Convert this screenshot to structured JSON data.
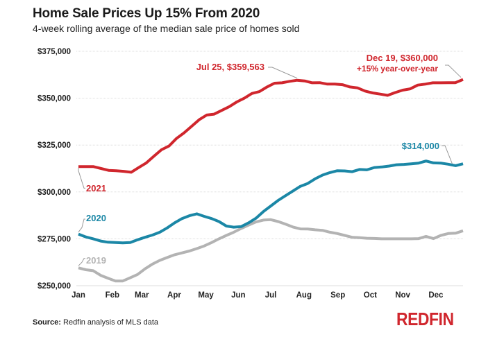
{
  "header": {
    "title": "Home Sale Prices Up 15% From 2020",
    "subtitle": "4-week rolling average of the median sale price of homes sold"
  },
  "footer": {
    "source_label": "Source:",
    "source_text": "Redfin analysis of MLS data",
    "logo": "REDFIN"
  },
  "colors": {
    "2021": "#d0262d",
    "2020": "#1b87a6",
    "2019": "#b3b3b3",
    "grid": "#dddddd",
    "leader": "#999999"
  },
  "chart_data": {
    "type": "line",
    "title": "Home Sale Prices Up 15% From 2020",
    "subtitle": "4-week rolling average of the median sale price of homes sold",
    "xlabel": "",
    "ylabel": "",
    "x_unit": "week of year",
    "x_range": [
      0,
      51
    ],
    "ylim": [
      250000,
      375000
    ],
    "grid": true,
    "legend": "direct labels",
    "yticks": [
      {
        "value": 375000,
        "label": "$375,000"
      },
      {
        "value": 350000,
        "label": "$350,000"
      },
      {
        "value": 325000,
        "label": "$325,000"
      },
      {
        "value": 300000,
        "label": "$300,000"
      },
      {
        "value": 275000,
        "label": "$275,000"
      },
      {
        "value": 250000,
        "label": "$250,000"
      }
    ],
    "xticks": [
      {
        "week": 0,
        "label": "Jan"
      },
      {
        "week": 4.5,
        "label": "Feb"
      },
      {
        "week": 8.4,
        "label": "Mar"
      },
      {
        "week": 12.7,
        "label": "Apr"
      },
      {
        "week": 16.9,
        "label": "May"
      },
      {
        "week": 21.2,
        "label": "Jun"
      },
      {
        "week": 25.5,
        "label": "Jul"
      },
      {
        "week": 29.9,
        "label": "Aug"
      },
      {
        "week": 34.4,
        "label": "Sep"
      },
      {
        "week": 38.7,
        "label": "Oct"
      },
      {
        "week": 43.0,
        "label": "Nov"
      },
      {
        "week": 47.4,
        "label": "Dec"
      }
    ],
    "series": [
      {
        "name": "2021",
        "label": "2021",
        "values": [
          313500,
          313500,
          313500,
          312500,
          311500,
          311300,
          311000,
          310500,
          313000,
          315500,
          319000,
          322500,
          324500,
          328500,
          331500,
          335000,
          338500,
          341000,
          341500,
          343500,
          345500,
          348000,
          350000,
          352500,
          353500,
          356000,
          358000,
          358200,
          359000,
          359563,
          359200,
          358200,
          358300,
          357500,
          357500,
          357200,
          356000,
          355500,
          353800,
          352800,
          352200,
          351500,
          353000,
          354300,
          355000,
          357000,
          357500,
          358200,
          358200,
          358300,
          358300,
          360000
        ]
      },
      {
        "name": "2020",
        "label": "2020",
        "values": [
          277500,
          276000,
          275000,
          273800,
          273200,
          273000,
          272800,
          273000,
          274500,
          275800,
          277000,
          278500,
          280800,
          283500,
          285800,
          287300,
          288300,
          287000,
          285800,
          284200,
          281800,
          281200,
          281500,
          283500,
          286000,
          289500,
          292500,
          295500,
          298000,
          300500,
          303000,
          304500,
          307000,
          309000,
          310300,
          311300,
          311200,
          310800,
          312000,
          311800,
          313000,
          313300,
          313800,
          314500,
          314700,
          315000,
          315400,
          316500,
          315500,
          315400,
          314800,
          314000,
          315000
        ]
      },
      {
        "name": "2019",
        "label": "2019",
        "values": [
          259500,
          258500,
          258000,
          255500,
          254000,
          252500,
          252500,
          254200,
          256000,
          259000,
          261500,
          263500,
          265000,
          266500,
          267500,
          268500,
          269800,
          271200,
          273000,
          275000,
          276800,
          278500,
          280500,
          282300,
          284000,
          285000,
          285200,
          284200,
          282800,
          281300,
          280300,
          280200,
          279800,
          279500,
          278500,
          277800,
          276800,
          275800,
          275600,
          275300,
          275200,
          275000,
          275000,
          275000,
          275000,
          275000,
          275100,
          276300,
          275100,
          276800,
          277800,
          278000,
          279300
        ]
      }
    ],
    "annotations": [
      {
        "series": "2021",
        "text": "Jul 25, $359,563",
        "week": 29
      },
      {
        "series": "2021",
        "text": "Dec 19, $360,000",
        "subtext": "+15% year-over-year",
        "week": 51
      },
      {
        "series": "2020",
        "text": "$314,000",
        "week": 51
      }
    ]
  }
}
